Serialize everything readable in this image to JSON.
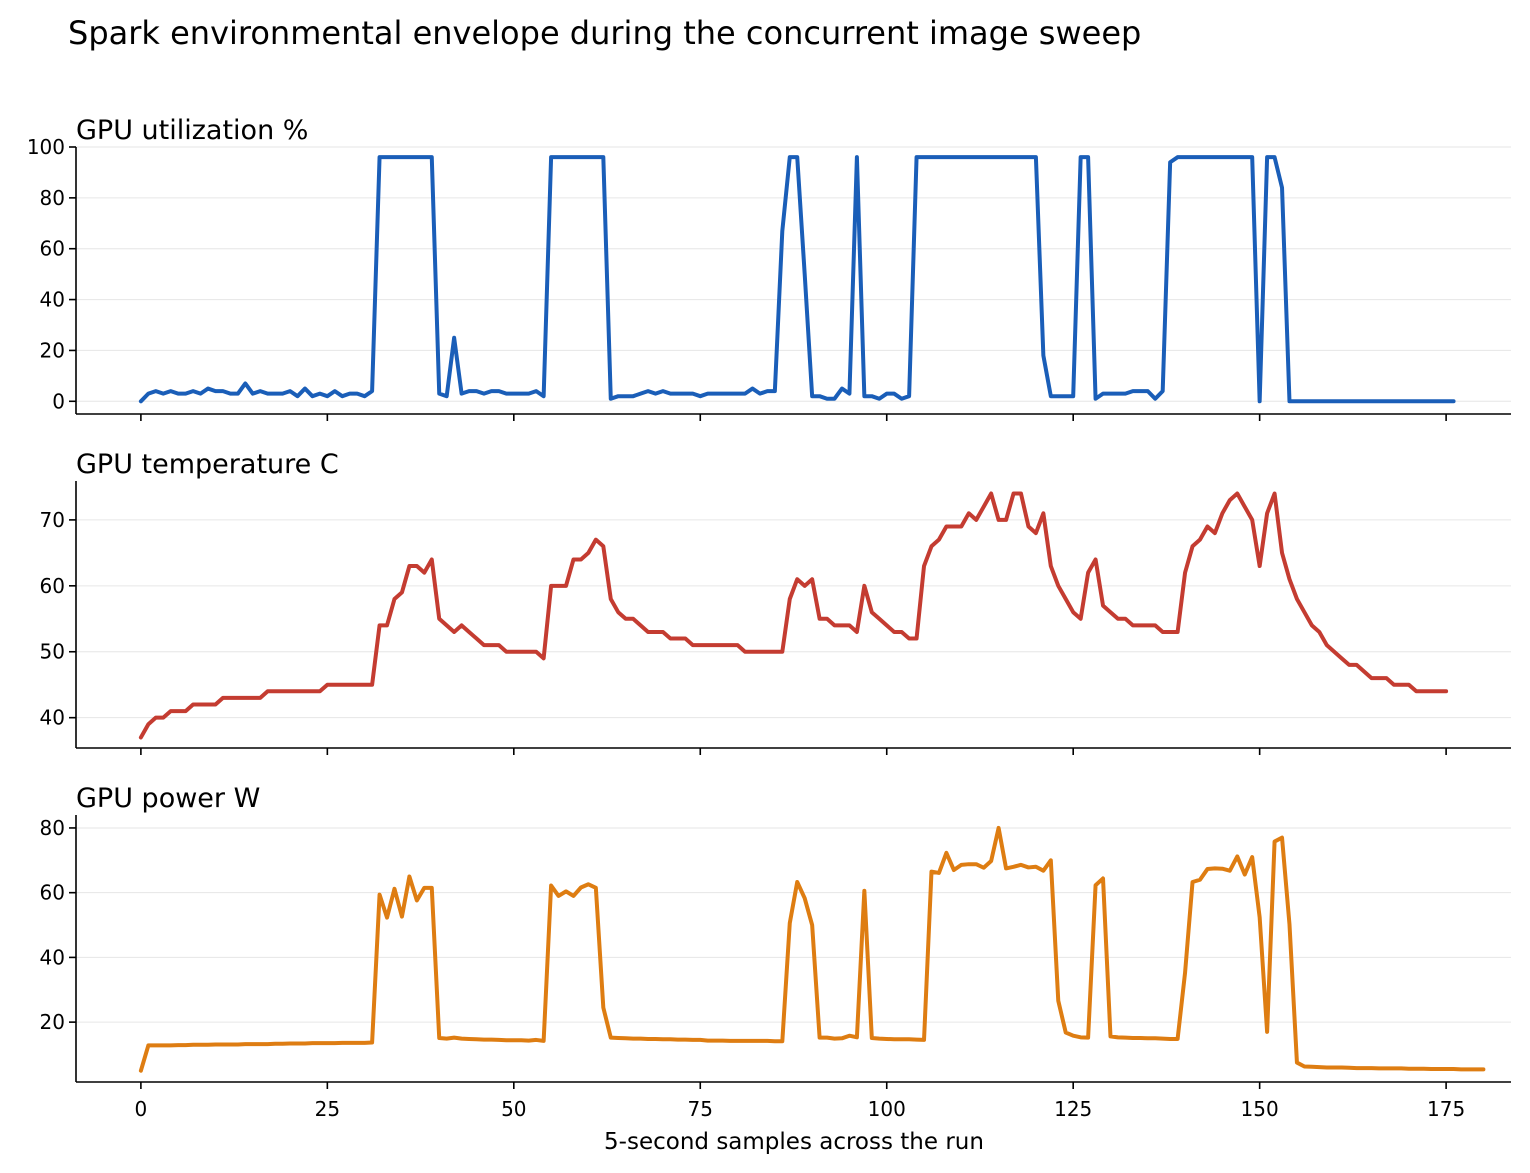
{
  "suptitle": "Spark environmental envelope during the concurrent image sweep",
  "xlabel": "5-second samples across the run",
  "x_ticks": [
    0,
    25,
    50,
    75,
    100,
    125,
    150,
    175
  ],
  "chart_data": [
    {
      "type": "line",
      "title": "GPU utilization %",
      "color": "#1a5eb8",
      "xlim": [
        -8.7,
        183.7
      ],
      "ylim": [
        -5,
        100
      ],
      "y_ticks": [
        0,
        20,
        40,
        60,
        80,
        100
      ],
      "grid": "horizontal",
      "values": [
        0,
        3,
        4,
        3,
        4,
        3,
        3,
        4,
        3,
        5,
        4,
        4,
        3,
        3,
        7,
        3,
        4,
        3,
        3,
        3,
        4,
        2,
        5,
        2,
        3,
        2,
        4,
        2,
        3,
        3,
        2,
        4,
        96,
        96,
        96,
        96,
        96,
        96,
        96,
        96,
        3,
        2,
        25,
        3,
        4,
        4,
        3,
        4,
        4,
        3,
        3,
        3,
        3,
        4,
        2,
        96,
        96,
        96,
        96,
        96,
        96,
        96,
        96,
        1,
        2,
        2,
        2,
        3,
        4,
        3,
        4,
        3,
        3,
        3,
        3,
        2,
        3,
        3,
        3,
        3,
        3,
        3,
        5,
        3,
        4,
        4,
        67,
        96,
        96,
        50,
        2,
        2,
        1,
        1,
        5,
        3,
        96,
        2,
        2,
        1,
        3,
        3,
        1,
        2,
        96,
        96,
        96,
        96,
        96,
        96,
        96,
        96,
        96,
        96,
        96,
        96,
        96,
        96,
        96,
        96,
        96,
        18,
        2,
        2,
        2,
        2,
        96,
        96,
        1,
        3,
        3,
        3,
        3,
        4,
        4,
        4,
        1,
        4,
        94,
        96,
        96,
        96,
        96,
        96,
        96,
        96,
        96,
        96,
        96,
        96,
        0,
        96,
        96,
        84,
        0,
        0,
        0,
        0,
        0,
        0,
        0,
        0,
        0,
        0,
        0,
        0,
        0,
        0,
        0,
        0,
        0,
        0,
        0,
        0,
        0,
        0,
        0
      ]
    },
    {
      "type": "line",
      "title": "GPU temperature C",
      "color": "#c43c31",
      "xlim": [
        -8.7,
        183.7
      ],
      "ylim": [
        35.4,
        75.9
      ],
      "y_ticks": [
        40,
        50,
        60,
        70
      ],
      "grid": "horizontal",
      "values": [
        37,
        39,
        40,
        40,
        41,
        41,
        41,
        42,
        42,
        42,
        42,
        43,
        43,
        43,
        43,
        43,
        43,
        44,
        44,
        44,
        44,
        44,
        44,
        44,
        44,
        45,
        45,
        45,
        45,
        45,
        45,
        45,
        54,
        54,
        58,
        59,
        63,
        63,
        62,
        64,
        55,
        54,
        53,
        54,
        53,
        52,
        51,
        51,
        51,
        50,
        50,
        50,
        50,
        50,
        49,
        60,
        60,
        60,
        64,
        64,
        65,
        67,
        66,
        58,
        56,
        55,
        55,
        54,
        53,
        53,
        53,
        52,
        52,
        52,
        51,
        51,
        51,
        51,
        51,
        51,
        51,
        50,
        50,
        50,
        50,
        50,
        50,
        58,
        61,
        60,
        61,
        55,
        55,
        54,
        54,
        54,
        53,
        60,
        56,
        55,
        54,
        53,
        53,
        52,
        52,
        63,
        66,
        67,
        69,
        69,
        69,
        71,
        70,
        72,
        74,
        70,
        70,
        74,
        74,
        69,
        68,
        71,
        63,
        60,
        58,
        56,
        55,
        62,
        64,
        57,
        56,
        55,
        55,
        54,
        54,
        54,
        54,
        53,
        53,
        53,
        62,
        66,
        67,
        69,
        68,
        71,
        73,
        74,
        72,
        70,
        63,
        71,
        74,
        65,
        61,
        58,
        56,
        54,
        53,
        51,
        50,
        49,
        48,
        48,
        47,
        46,
        46,
        46,
        45,
        45,
        45,
        44,
        44,
        44,
        44,
        44
      ]
    },
    {
      "type": "line",
      "title": "GPU power W",
      "color": "#de7d12",
      "xlim": [
        -8.7,
        183.7
      ],
      "ylim": [
        1.5,
        84
      ],
      "y_ticks": [
        20,
        40,
        60,
        80
      ],
      "grid": "horizontal",
      "values": [
        5,
        12.8,
        12.8,
        12.8,
        12.8,
        12.9,
        12.9,
        13,
        13,
        13,
        13.1,
        13.1,
        13.1,
        13.1,
        13.2,
        13.2,
        13.2,
        13.2,
        13.3,
        13.3,
        13.4,
        13.4,
        13.4,
        13.5,
        13.5,
        13.5,
        13.5,
        13.6,
        13.6,
        13.6,
        13.6,
        13.7,
        59.4,
        52.3,
        61.2,
        52.6,
        65,
        57.6,
        61.5,
        61.5,
        15.1,
        14.9,
        15.2,
        14.9,
        14.8,
        14.7,
        14.6,
        14.6,
        14.5,
        14.4,
        14.4,
        14.4,
        14.3,
        14.5,
        14.2,
        62.2,
        59,
        60.4,
        59,
        61.6,
        62.6,
        61.5,
        24.5,
        15.2,
        15.1,
        15,
        14.9,
        14.9,
        14.8,
        14.8,
        14.7,
        14.7,
        14.6,
        14.6,
        14.5,
        14.5,
        14.3,
        14.3,
        14.3,
        14.2,
        14.2,
        14.2,
        14.2,
        14.2,
        14.2,
        14.1,
        14.1,
        50.6,
        63.3,
        58.3,
        50,
        15.2,
        15.2,
        14.9,
        15,
        15.8,
        15.3,
        60.6,
        15.1,
        14.9,
        14.8,
        14.7,
        14.7,
        14.7,
        14.6,
        14.5,
        66.5,
        66.1,
        72.3,
        67,
        68.6,
        68.8,
        68.8,
        67.7,
        69.8,
        80,
        67.5,
        68,
        68.6,
        67.8,
        68,
        66.8,
        70,
        26.6,
        16.8,
        15.8,
        15.3,
        15.2,
        62.3,
        64.4,
        15.6,
        15.3,
        15.2,
        15.1,
        15.1,
        15,
        15,
        14.9,
        14.8,
        14.8,
        35.3,
        63.3,
        64,
        67.3,
        67.5,
        67.4,
        66.8,
        71.2,
        65.6,
        71,
        52.4,
        17,
        75.8,
        77,
        50.2,
        7.5,
        6.3,
        6.2,
        6.1,
        6,
        6,
        6,
        5.9,
        5.8,
        5.8,
        5.8,
        5.7,
        5.7,
        5.7,
        5.7,
        5.6,
        5.6,
        5.6,
        5.5,
        5.5,
        5.5,
        5.5,
        5.4,
        5.4,
        5.4,
        5.4
      ]
    }
  ]
}
